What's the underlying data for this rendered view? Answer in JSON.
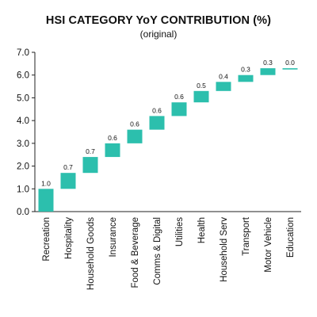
{
  "chart_data": {
    "type": "bar",
    "title": "HSI CATEGORY YoY CONTRIBUTION (%)",
    "subtitle": "(original)",
    "categories": [
      "Recreation",
      "Hospitality",
      "Household Goods",
      "Insurance",
      "Food & Beverage",
      "Comms & Digital",
      "Utilities",
      "Health",
      "Household Serv",
      "Transport",
      "Motor Vehicle",
      "Education"
    ],
    "values": [
      1.0,
      0.7,
      0.7,
      0.6,
      0.6,
      0.6,
      0.6,
      0.5,
      0.4,
      0.3,
      0.3,
      0.0
    ],
    "value_labels": [
      "1.0",
      "0.7",
      "0.7",
      "0.6",
      "0.6",
      "0.6",
      "0.6",
      "0.5",
      "0.4",
      "0.3",
      "0.3",
      "0.0"
    ],
    "cumulative_start": [
      0.0,
      1.0,
      1.7,
      2.4,
      3.0,
      3.6,
      4.2,
      4.8,
      5.3,
      5.7,
      6.0,
      6.3
    ],
    "ylim": [
      0,
      7
    ],
    "yticks": [
      "0.0",
      "1.0",
      "2.0",
      "3.0",
      "4.0",
      "5.0",
      "6.0",
      "7.0"
    ],
    "waterfall": true,
    "grid": false,
    "bar_color": "#2cbfad"
  }
}
